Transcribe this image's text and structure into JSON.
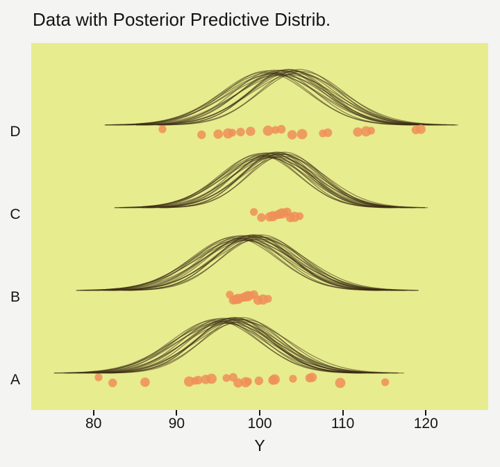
{
  "title": "Data with Posterior Predictive Distrib.",
  "chart_data": {
    "type": "line",
    "subtype": "posterior-predictive-ridgeline",
    "title": "Data with Posterior Predictive Distrib.",
    "xlabel": "Y",
    "ylabel": "",
    "xlim": [
      72.5,
      127.5
    ],
    "xticks": [
      80,
      90,
      100,
      110,
      120
    ],
    "grid": false,
    "legend_position": "none",
    "group_order": "top-to-bottom",
    "groups": [
      {
        "label": "D",
        "data_points": [
          88.3,
          93.0,
          95.0,
          96.2,
          96.7,
          97.7,
          98.9,
          101.0,
          101.9,
          102.6,
          103.9,
          105.1,
          107.6,
          108.2,
          111.8,
          112.8,
          113.4,
          118.8,
          119.4
        ],
        "curves": [
          [
            102.8,
            5.2,
            78
          ],
          [
            101.2,
            5.8,
            75
          ],
          [
            103.6,
            4.7,
            80
          ],
          [
            103.2,
            6.0,
            73
          ],
          [
            101.8,
            4.9,
            79
          ],
          [
            104.2,
            5.4,
            77
          ],
          [
            102.4,
            6.2,
            72
          ],
          [
            100.9,
            5.1,
            78
          ],
          [
            104.8,
            4.8,
            80
          ],
          [
            103.0,
            5.6,
            76
          ],
          [
            101.5,
            5.9,
            73
          ],
          [
            105.1,
            5.1,
            77
          ],
          [
            103.4,
            4.6,
            80
          ],
          [
            102.0,
            5.8,
            75
          ],
          [
            103.9,
            5.2,
            78
          ],
          [
            100.6,
            5.3,
            76
          ],
          [
            104.5,
            5.7,
            74
          ],
          [
            102.6,
            5.0,
            79
          ]
        ]
      },
      {
        "label": "C",
        "data_points": [
          99.3,
          100.2,
          101.2,
          101.6,
          101.9,
          102.2,
          102.4,
          102.7,
          103.0,
          103.3,
          103.7,
          104.2,
          104.8
        ],
        "curves": [
          [
            101.5,
            4.6,
            78
          ],
          [
            100.4,
            5.1,
            75
          ],
          [
            102.2,
            4.2,
            80
          ],
          [
            101.9,
            5.3,
            73
          ],
          [
            100.8,
            4.4,
            79
          ],
          [
            102.6,
            4.8,
            77
          ],
          [
            101.2,
            5.5,
            72
          ],
          [
            100.1,
            4.6,
            78
          ],
          [
            103.0,
            4.3,
            80
          ],
          [
            101.7,
            5.0,
            76
          ],
          [
            100.6,
            5.3,
            73
          ],
          [
            103.2,
            4.5,
            77
          ],
          [
            102.0,
            4.1,
            80
          ],
          [
            101.0,
            5.2,
            75
          ],
          [
            102.4,
            4.7,
            78
          ],
          [
            99.9,
            4.8,
            76
          ],
          [
            102.9,
            5.1,
            74
          ],
          [
            101.4,
            4.4,
            79
          ]
        ]
      },
      {
        "label": "B",
        "data_points": [
          96.4,
          96.8,
          97.1,
          97.4,
          97.7,
          98.0,
          98.3,
          98.6,
          98.9,
          99.3,
          99.8,
          100.4,
          101.0
        ],
        "curves": [
          [
            98.6,
            5.1,
            78
          ],
          [
            97.4,
            5.6,
            75
          ],
          [
            99.3,
            4.6,
            80
          ],
          [
            99.0,
            5.9,
            73
          ],
          [
            97.9,
            4.8,
            79
          ],
          [
            99.8,
            5.3,
            77
          ],
          [
            98.3,
            6.0,
            72
          ],
          [
            97.2,
            5.0,
            78
          ],
          [
            100.2,
            4.7,
            80
          ],
          [
            98.8,
            5.5,
            76
          ],
          [
            97.7,
            5.8,
            73
          ],
          [
            100.4,
            5.0,
            77
          ],
          [
            99.2,
            4.5,
            80
          ],
          [
            98.1,
            5.7,
            75
          ],
          [
            99.5,
            5.1,
            78
          ],
          [
            96.9,
            5.2,
            76
          ],
          [
            100.1,
            5.6,
            74
          ],
          [
            98.7,
            4.9,
            79
          ]
        ]
      },
      {
        "label": "A",
        "data_points": [
          80.6,
          82.3,
          86.2,
          91.5,
          92.2,
          92.6,
          93.5,
          94.2,
          96.0,
          96.8,
          97.4,
          98.3,
          98.6,
          99.9,
          101.6,
          101.8,
          104.0,
          106.0,
          106.3,
          109.7,
          115.1
        ],
        "curves": [
          [
            96.2,
            5.0,
            78
          ],
          [
            95.1,
            5.5,
            75
          ],
          [
            97.0,
            4.6,
            80
          ],
          [
            96.8,
            5.8,
            73
          ],
          [
            95.6,
            4.9,
            79
          ],
          [
            97.5,
            5.2,
            77
          ],
          [
            96.0,
            6.1,
            72
          ],
          [
            94.9,
            5.0,
            78
          ],
          [
            97.9,
            4.7,
            80
          ],
          [
            96.5,
            5.4,
            76
          ],
          [
            95.3,
            5.9,
            73
          ],
          [
            98.2,
            5.1,
            77
          ],
          [
            96.9,
            4.5,
            80
          ],
          [
            95.8,
            5.6,
            75
          ],
          [
            97.2,
            5.0,
            78
          ],
          [
            94.6,
            5.3,
            76
          ],
          [
            98.0,
            5.7,
            74
          ],
          [
            96.4,
            4.8,
            79
          ]
        ]
      }
    ],
    "colors": {
      "page_bg": "#f4f4f2",
      "plot_bg": "#e7ec8e",
      "curve": "#3a2c12",
      "dot": "#ef8f58",
      "text": "#141414"
    }
  }
}
